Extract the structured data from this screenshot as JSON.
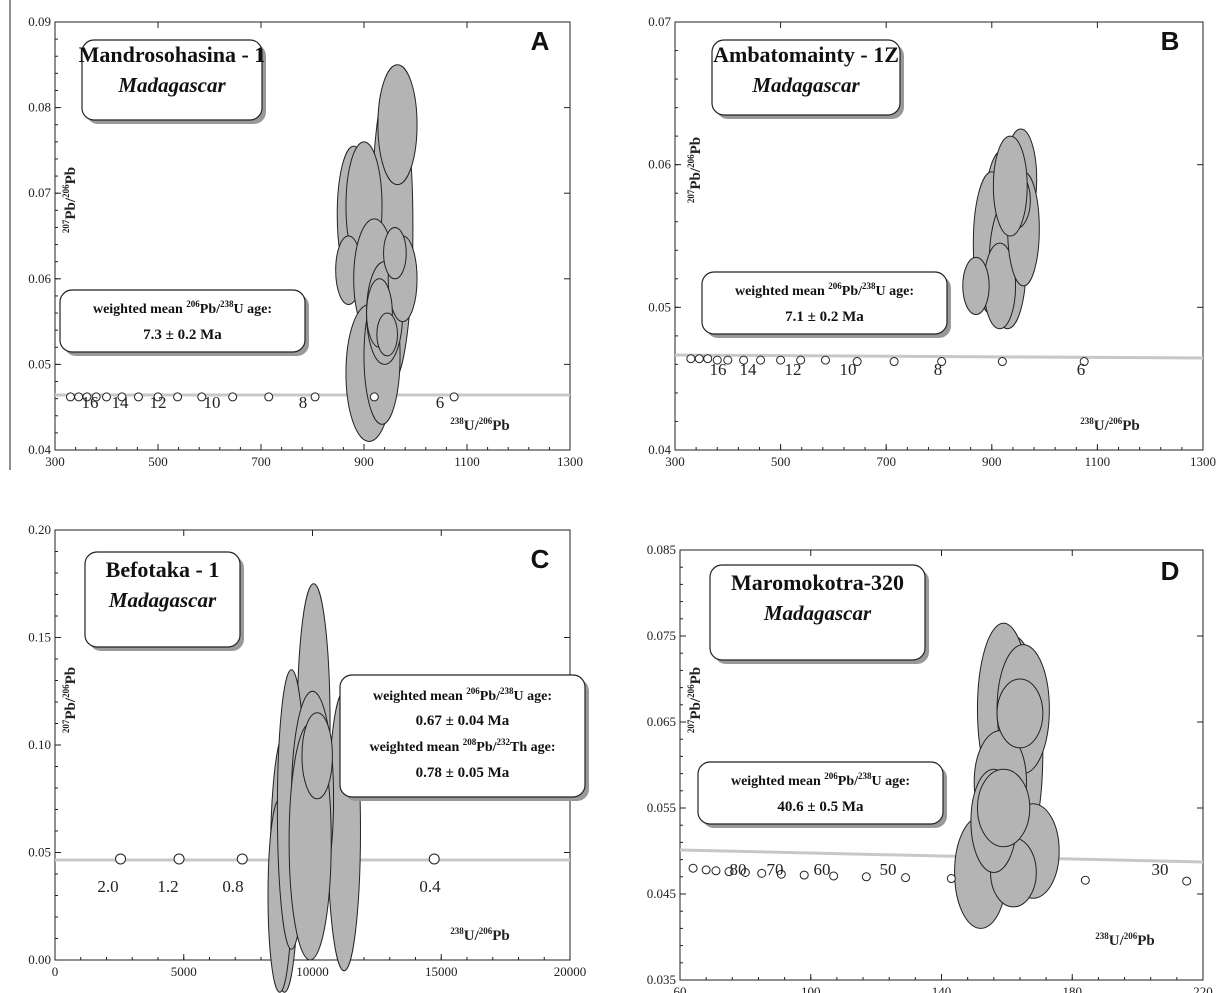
{
  "common": {
    "ylabel_iso": "Pb/",
    "ylabel_num_top": "207",
    "ylabel_num_bot": "206",
    "ylabel_end": "Pb",
    "xlabel_num_top": "238",
    "xlabel_u": "U/",
    "xlabel_num_bot": "206",
    "xlabel_end": "Pb",
    "wm_prefix": "weighted mean ",
    "wm_206": "206",
    "wm_pb": "Pb/",
    "wm_238": "238",
    "wm_u_age": "U age:",
    "wm_208": "208",
    "wm_232": "232",
    "wm_th_age": "Th age:",
    "subtitle": "Madagascar"
  },
  "chart_data": [
    {
      "panel": "A",
      "type": "scatter",
      "title": "Mandrosohasina - 1",
      "xlim": [
        300,
        1300
      ],
      "ylim": [
        0.04,
        0.09
      ],
      "xticks": [
        "300",
        "500",
        "700",
        "900",
        "1100",
        "1300"
      ],
      "yticks": [
        "0.04",
        "0.05",
        "0.06",
        "0.07",
        "0.08",
        "0.09"
      ],
      "concordia_ages": [
        "16",
        "14",
        "12",
        "10",
        "8",
        "6"
      ],
      "age_value": "7.3 ± 0.2 Ma",
      "ellipses": [
        {
          "x": 955,
          "y": 0.066,
          "rx": 40,
          "ry": 0.018
        },
        {
          "x": 965,
          "y": 0.078,
          "rx": 38,
          "ry": 0.007
        },
        {
          "x": 880,
          "y": 0.0675,
          "rx": 32,
          "ry": 0.008
        },
        {
          "x": 900,
          "y": 0.0685,
          "rx": 35,
          "ry": 0.0075
        },
        {
          "x": 870,
          "y": 0.061,
          "rx": 25,
          "ry": 0.004
        },
        {
          "x": 920,
          "y": 0.06,
          "rx": 40,
          "ry": 0.007
        },
        {
          "x": 910,
          "y": 0.049,
          "rx": 45,
          "ry": 0.008
        },
        {
          "x": 935,
          "y": 0.051,
          "rx": 35,
          "ry": 0.008
        },
        {
          "x": 940,
          "y": 0.056,
          "rx": 35,
          "ry": 0.006
        },
        {
          "x": 975,
          "y": 0.06,
          "rx": 28,
          "ry": 0.005
        },
        {
          "x": 960,
          "y": 0.063,
          "rx": 22,
          "ry": 0.003
        },
        {
          "x": 930,
          "y": 0.056,
          "rx": 25,
          "ry": 0.004
        },
        {
          "x": 945,
          "y": 0.0535,
          "rx": 20,
          "ry": 0.0025
        }
      ]
    },
    {
      "panel": "B",
      "type": "scatter",
      "title": "Ambatomainty - 1Z",
      "xlim": [
        300,
        1300
      ],
      "ylim": [
        0.04,
        0.07
      ],
      "xticks": [
        "300",
        "500",
        "700",
        "900",
        "1100",
        "1300"
      ],
      "yticks": [
        "0.04",
        "0.05",
        "0.06",
        "0.07"
      ],
      "concordia_ages": [
        "16",
        "14",
        "12",
        "10",
        "8",
        "6"
      ],
      "age_value": "7.1 ± 0.2 Ma",
      "ellipses": [
        {
          "x": 920,
          "y": 0.056,
          "rx": 35,
          "ry": 0.005
        },
        {
          "x": 955,
          "y": 0.059,
          "rx": 30,
          "ry": 0.0035
        },
        {
          "x": 900,
          "y": 0.0545,
          "rx": 35,
          "ry": 0.005
        },
        {
          "x": 930,
          "y": 0.053,
          "rx": 35,
          "ry": 0.0045
        },
        {
          "x": 915,
          "y": 0.0515,
          "rx": 30,
          "ry": 0.003
        },
        {
          "x": 960,
          "y": 0.0555,
          "rx": 30,
          "ry": 0.004
        },
        {
          "x": 945,
          "y": 0.0575,
          "rx": 28,
          "ry": 0.002
        },
        {
          "x": 870,
          "y": 0.0515,
          "rx": 25,
          "ry": 0.002
        },
        {
          "x": 935,
          "y": 0.0585,
          "rx": 32,
          "ry": 0.0035
        }
      ]
    },
    {
      "panel": "C",
      "type": "scatter",
      "title": "Befotaka - 1",
      "xlim": [
        0,
        22000
      ],
      "ylim": [
        0.0,
        0.2
      ],
      "xticks": [
        "0",
        "5000",
        "10000",
        "15000",
        "20000"
      ],
      "yticks": [
        "0.00",
        "0.05",
        "0.10",
        "0.15",
        "0.20"
      ],
      "concordia_ages": [
        "2.0",
        "1.2",
        "0.8",
        "0.4"
      ],
      "age_value": "0.67 ± 0.04 Ma",
      "age_value2": "0.78 ± 0.05 Ma",
      "ellipses": [
        {
          "x": 11050,
          "y": 0.11,
          "rx": 700,
          "ry": 0.065
        },
        {
          "x": 12350,
          "y": 0.06,
          "rx": 700,
          "ry": 0.065
        },
        {
          "x": 9800,
          "y": 0.045,
          "rx": 600,
          "ry": 0.06
        },
        {
          "x": 9600,
          "y": 0.03,
          "rx": 500,
          "ry": 0.045
        },
        {
          "x": 10100,
          "y": 0.07,
          "rx": 600,
          "ry": 0.065
        },
        {
          "x": 11000,
          "y": 0.075,
          "rx": 900,
          "ry": 0.05
        },
        {
          "x": 10900,
          "y": 0.055,
          "rx": 900,
          "ry": 0.055
        },
        {
          "x": 11200,
          "y": 0.095,
          "rx": 650,
          "ry": 0.02
        }
      ]
    },
    {
      "panel": "D",
      "type": "scatter",
      "title": "Maromokotra-320",
      "xlim": [
        60,
        220
      ],
      "ylim": [
        0.035,
        0.085
      ],
      "xticks": [
        "60",
        "100",
        "140",
        "180",
        "220"
      ],
      "yticks": [
        "0.035",
        "0.045",
        "0.055",
        "0.065",
        "0.075",
        "0.085"
      ],
      "concordia_ages": [
        "80",
        "70",
        "60",
        "50",
        "30"
      ],
      "age_value": "40.6 ± 0.5 Ma",
      "ellipses": [
        {
          "x": 162,
          "y": 0.0615,
          "rx": 9,
          "ry": 0.0135
        },
        {
          "x": 159,
          "y": 0.0665,
          "rx": 8,
          "ry": 0.01
        },
        {
          "x": 165,
          "y": 0.0665,
          "rx": 8,
          "ry": 0.0075
        },
        {
          "x": 152,
          "y": 0.0475,
          "rx": 8,
          "ry": 0.0065
        },
        {
          "x": 168,
          "y": 0.05,
          "rx": 8,
          "ry": 0.0055
        },
        {
          "x": 158,
          "y": 0.058,
          "rx": 8,
          "ry": 0.006
        },
        {
          "x": 162,
          "y": 0.0475,
          "rx": 7,
          "ry": 0.004
        },
        {
          "x": 156,
          "y": 0.0535,
          "rx": 7,
          "ry": 0.006
        },
        {
          "x": 164,
          "y": 0.066,
          "rx": 7,
          "ry": 0.004
        },
        {
          "x": 159,
          "y": 0.055,
          "rx": 8,
          "ry": 0.0045
        }
      ]
    }
  ]
}
